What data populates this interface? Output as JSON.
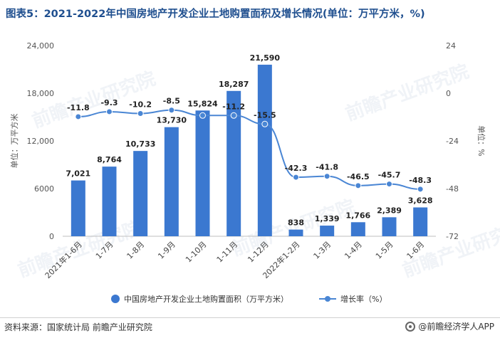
{
  "title": "图表5：2021-2022年中国房地产开发企业土地购置面积及增长情况(单位：万平方米，%)",
  "source": "资料来源：国家统计局 前瞻产业研究院",
  "brand": "@前瞻经济学人APP",
  "watermark": "前瞻产业研究院",
  "colors": {
    "bar": "#3b78d0",
    "line": "#4a86d4",
    "title": "#1f4f8f"
  },
  "chart_data": {
    "type": "bar",
    "categories": [
      "2021年1-6月",
      "1-7月",
      "1-8月",
      "1-9月",
      "1-10月",
      "1-11月",
      "1-12月",
      "2022年1-2月",
      "1-3月",
      "1-4月",
      "1-5月",
      "1-6月"
    ],
    "series": [
      {
        "name": "中国房地产开发企业土地购置面积（万平方米）",
        "type": "bar",
        "axis": "left",
        "values": [
          7021,
          8764,
          10733,
          13730,
          15824,
          18287,
          21590,
          838,
          1339,
          1766,
          2389,
          3628
        ],
        "labels": [
          "7,021",
          "8,764",
          "10,733",
          "13,730",
          "15,824",
          "18,287",
          "21,590",
          "838",
          "1,339",
          "1,766",
          "2,389",
          "3,628"
        ]
      },
      {
        "name": "增长率（%）",
        "type": "line",
        "axis": "right",
        "values": [
          -11.8,
          -9.3,
          -10.2,
          -8.5,
          -11.2,
          -11.2,
          -15.5,
          -42.3,
          -41.8,
          -46.5,
          -45.7,
          -48.3
        ],
        "labels": [
          "-11.8",
          "-9.3",
          "-10.2",
          "-8.5",
          "",
          "-11.2",
          "-15.5",
          "-42.3",
          "-41.8",
          "-46.5",
          "-45.7",
          "-48.3"
        ]
      }
    ],
    "ylabel": "单位：万平方米",
    "y2label": "单位：%",
    "ylim": [
      0,
      24000
    ],
    "y2lim": [
      -72,
      24
    ],
    "yticks": [
      "0",
      "6000",
      "12,000",
      "18,000",
      "24,000"
    ],
    "y2ticks": [
      "-72",
      "-48",
      "-24",
      "0",
      "24"
    ],
    "grid": false,
    "legend": "bottom"
  }
}
